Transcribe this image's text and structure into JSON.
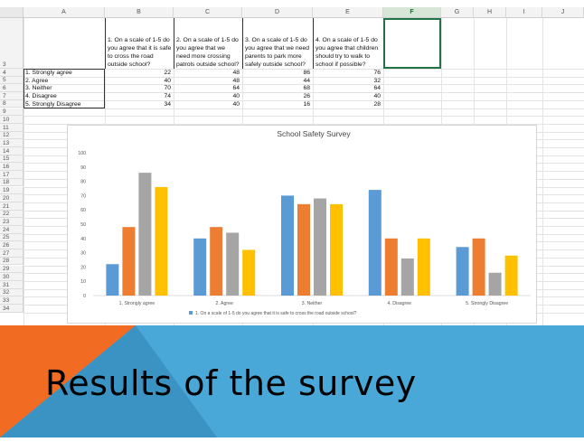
{
  "sheet": {
    "columns": [
      "A",
      "B",
      "C",
      "D",
      "E",
      "F",
      "G",
      "H",
      "I",
      "J"
    ],
    "selected_column": "F",
    "row_numbers": [
      "3",
      "4",
      "5",
      "6",
      "7",
      "8",
      "9",
      "10",
      "11",
      "12",
      "13",
      "14",
      "15",
      "16",
      "17",
      "18",
      "19",
      "20",
      "21",
      "22",
      "23",
      "24",
      "25",
      "26",
      "27",
      "28",
      "29",
      "30",
      "31",
      "32",
      "33",
      "34"
    ],
    "questions": [
      "1. On a scale of 1-5 do you agree that it is safe to cross the road outside school?",
      "2. On a scale of 1-5 do you agree that we need more crossing patrols outside school?",
      "3. On a scale of 1-5 do you agree that we need parents to park more safely outside school?",
      "4. On a scale of 1-5 do you agree that children should try to walk to school if possible?"
    ],
    "rows": [
      {
        "label": "1. Strongly agree",
        "values": [
          22,
          48,
          86,
          76
        ]
      },
      {
        "label": "2. Agree",
        "values": [
          40,
          48,
          44,
          32
        ]
      },
      {
        "label": "3. Neither",
        "values": [
          70,
          64,
          68,
          64
        ]
      },
      {
        "label": "4. Disagree",
        "values": [
          74,
          40,
          26,
          40
        ]
      },
      {
        "label": "5. Strongly Disagree",
        "values": [
          34,
          40,
          16,
          28
        ]
      }
    ]
  },
  "chart_data": {
    "type": "bar",
    "title": "School Safety Survey",
    "categories": [
      "1. Strongly agree",
      "2. Agree",
      "3. Neither",
      "4. Disagree",
      "5. Strongly Disagree"
    ],
    "series": [
      {
        "name": "1. On a scale of 1-5 do you agree that it is safe to cross the road outside school?",
        "values": [
          22,
          40,
          70,
          74,
          34
        ],
        "color": "#5b9bd5"
      },
      {
        "values": [
          48,
          48,
          64,
          40,
          40
        ],
        "color": "#ed7d31"
      },
      {
        "values": [
          86,
          44,
          68,
          26,
          16
        ],
        "color": "#a5a5a5"
      },
      {
        "values": [
          76,
          32,
          64,
          40,
          28
        ],
        "color": "#ffc000"
      }
    ],
    "ylim": [
      0,
      100
    ],
    "yticks": [
      0,
      10,
      20,
      30,
      40,
      50,
      60,
      70,
      80,
      90,
      100
    ],
    "grid": false,
    "legend": "bottom"
  },
  "banner": {
    "title": "Results of the survey",
    "colors": {
      "orange": "#f26b22",
      "blue": "#4aa8d8",
      "dark_blue": "#3b93c4"
    }
  }
}
